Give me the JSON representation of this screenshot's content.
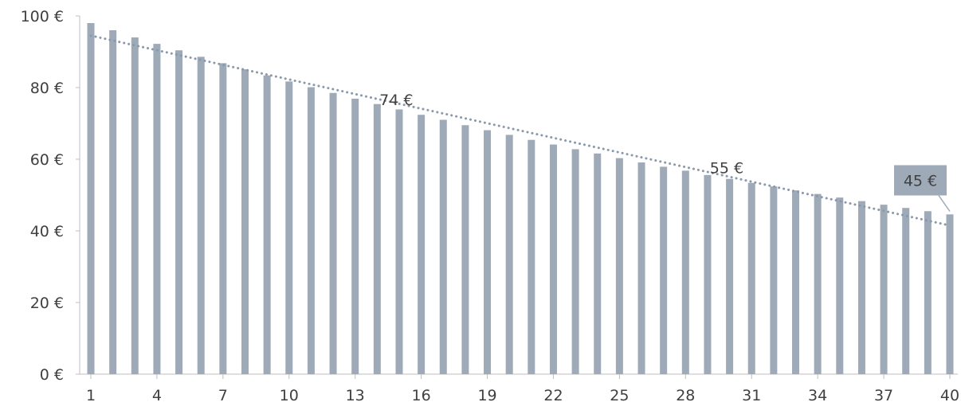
{
  "chart_data": {
    "type": "bar",
    "categories": [
      "1",
      "2",
      "3",
      "4",
      "5",
      "6",
      "7",
      "8",
      "9",
      "10",
      "11",
      "12",
      "13",
      "14",
      "15",
      "16",
      "17",
      "18",
      "19",
      "20",
      "21",
      "22",
      "23",
      "24",
      "25",
      "26",
      "27",
      "28",
      "29",
      "30",
      "31",
      "32",
      "33",
      "34",
      "35",
      "36",
      "37",
      "38",
      "39",
      "40"
    ],
    "x_tick_labels": [
      "1",
      "4",
      "7",
      "10",
      "13",
      "16",
      "19",
      "22",
      "25",
      "28",
      "31",
      "34",
      "37",
      "40"
    ],
    "values": [
      98,
      96,
      94,
      92.2,
      90.4,
      88.6,
      86.8,
      85.1,
      83.4,
      81.7,
      80.1,
      78.5,
      76.9,
      75.4,
      73.9,
      72.4,
      71.0,
      69.5,
      68.1,
      66.8,
      65.4,
      64.1,
      62.8,
      61.6,
      60.3,
      59.1,
      57.9,
      56.8,
      55.6,
      54.5,
      53.4,
      52.4,
      51.3,
      50.3,
      49.3,
      48.3,
      47.3,
      46.4,
      45.5,
      44.6
    ],
    "series": [
      {
        "name": "",
        "color": "#9eaab8",
        "values": [
          98,
          96,
          94,
          92.2,
          90.4,
          88.6,
          86.8,
          85.1,
          83.4,
          81.7,
          80.1,
          78.5,
          76.9,
          75.4,
          73.9,
          72.4,
          71.0,
          69.5,
          68.1,
          66.8,
          65.4,
          64.1,
          62.8,
          61.6,
          60.3,
          59.1,
          57.9,
          56.8,
          55.6,
          54.5,
          53.4,
          52.4,
          51.3,
          50.3,
          49.3,
          48.3,
          47.3,
          46.4,
          45.5,
          44.6
        ]
      }
    ],
    "trendline": {
      "style": "dotted",
      "color": "#8a98ab",
      "start": [
        1,
        94.5
      ],
      "end": [
        40,
        41.5
      ]
    },
    "annotations": [
      {
        "text": "74 €",
        "x": 14,
        "y": 74
      },
      {
        "text": "55 €",
        "x": 29,
        "y": 55
      },
      {
        "text": "45 €",
        "x": 40,
        "y": 45,
        "callout": true,
        "box_color": "#9eaab8"
      }
    ],
    "y_tick_labels": [
      "0 €",
      "20 €",
      "40 €",
      "60 €",
      "80 €",
      "100 €"
    ],
    "y_ticks": [
      0,
      20,
      40,
      60,
      80,
      100
    ],
    "ylim": [
      0,
      100
    ],
    "xlim": [
      1,
      40
    ],
    "grid": false,
    "bar_color": "#9eaab8",
    "title": "",
    "xlabel": "",
    "ylabel": ""
  }
}
